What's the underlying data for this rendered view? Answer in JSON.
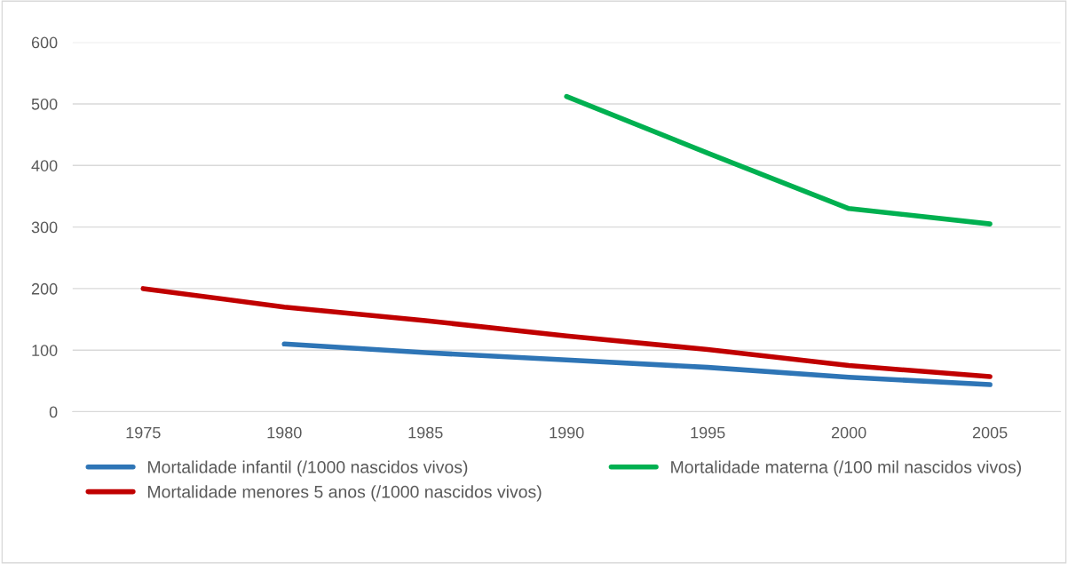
{
  "chart_data": {
    "type": "line",
    "categories": [
      "1975",
      "1980",
      "1985",
      "1990",
      "1995",
      "2000",
      "2005"
    ],
    "series": [
      {
        "name": "Mortalidade infantil (/1000 nascidos vivos)",
        "color": "#2e75b6",
        "values": [
          null,
          110,
          96,
          84,
          72,
          56,
          44
        ]
      },
      {
        "name": "Mortalidade menores 5 anos (/1000 nascidos vivos)",
        "color": "#c00000",
        "values": [
          200,
          170,
          148,
          123,
          101,
          75,
          57
        ]
      },
      {
        "name": "Mortalidade materna (/100 mil nascidos vivos)",
        "color": "#00b050",
        "values": [
          null,
          null,
          null,
          512,
          420,
          330,
          305
        ]
      }
    ],
    "ylim": [
      0,
      600
    ],
    "yticks": [
      0,
      100,
      200,
      300,
      400,
      500,
      600
    ],
    "grid": "y",
    "legend": "bottom",
    "marker": "none",
    "line_style": "solid"
  }
}
